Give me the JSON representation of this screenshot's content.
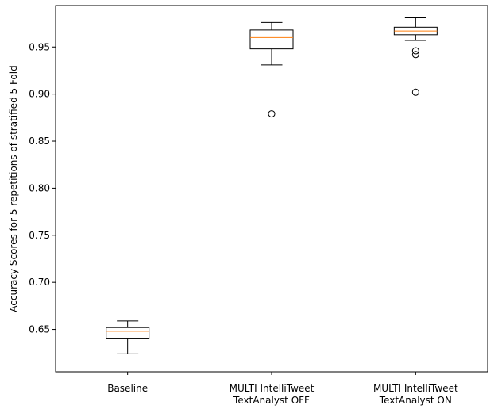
{
  "chart_data": {
    "type": "box",
    "title": "",
    "xlabel": "",
    "ylabel": "Accuracy Scores for 5 repetitions of stratified 5 Fold",
    "ylim": [
      0.605,
      0.994
    ],
    "yticks": [
      0.65,
      0.7,
      0.75,
      0.8,
      0.85,
      0.9,
      0.95
    ],
    "ytick_labels": [
      "0.65",
      "0.70",
      "0.75",
      "0.80",
      "0.85",
      "0.90",
      "0.95"
    ],
    "grid": false,
    "colors": {
      "box": "#000000",
      "median": "#ff7f0e",
      "background": "#ffffff"
    },
    "categories": [
      [
        "Baseline"
      ],
      [
        "MULTI IntelliTweet",
        "TextAnalyst OFF"
      ],
      [
        "MULTI IntelliTweet",
        "TextAnalyst ON"
      ]
    ],
    "boxes": [
      {
        "whislo": 0.624,
        "q1": 0.64,
        "med": 0.648,
        "q3": 0.652,
        "whishi": 0.659,
        "fliers": []
      },
      {
        "whislo": 0.931,
        "q1": 0.948,
        "med": 0.96,
        "q3": 0.968,
        "whishi": 0.976,
        "fliers": [
          0.879
        ]
      },
      {
        "whislo": 0.957,
        "q1": 0.963,
        "med": 0.967,
        "q3": 0.971,
        "whishi": 0.981,
        "fliers": [
          0.946,
          0.942,
          0.902
        ]
      }
    ]
  }
}
